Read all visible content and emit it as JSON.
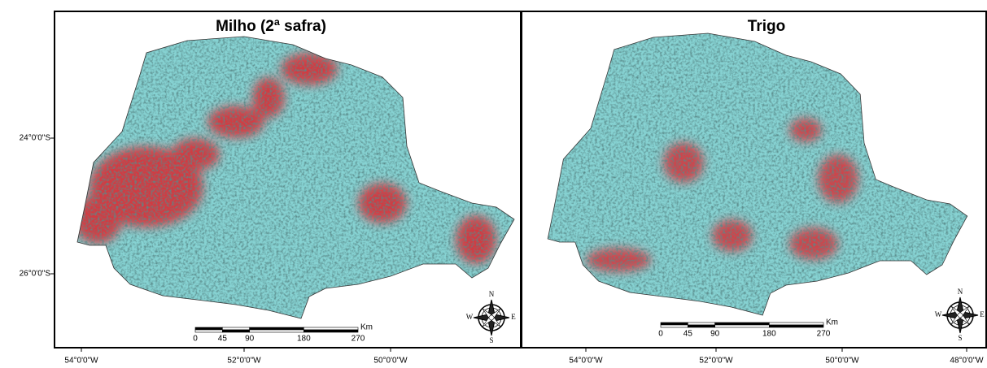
{
  "panels": [
    {
      "title": "Milho (2ª safra)",
      "lat_labels": [
        "24°0'0\"S",
        "26°0'0\"S"
      ],
      "lon_labels": [
        "54°0'0\"W",
        "52°0'0\"W",
        "50°0'0\"W"
      ],
      "scale": {
        "labels": [
          "0",
          "45",
          "90",
          "180",
          "270"
        ],
        "unit": "Km"
      },
      "compass": {
        "n": "N",
        "s": "S",
        "w": "W",
        "e": "E"
      }
    },
    {
      "title": "Trigo",
      "lon_labels": [
        "54°0'0\"W",
        "52°0'0\"W",
        "50°0'0\"W",
        "48°0'0\"W"
      ],
      "scale": {
        "labels": [
          "0",
          "45",
          "90",
          "180",
          "270"
        ],
        "unit": "Km"
      },
      "compass": {
        "n": "N",
        "s": "S",
        "w": "W",
        "e": "E"
      }
    }
  ]
}
